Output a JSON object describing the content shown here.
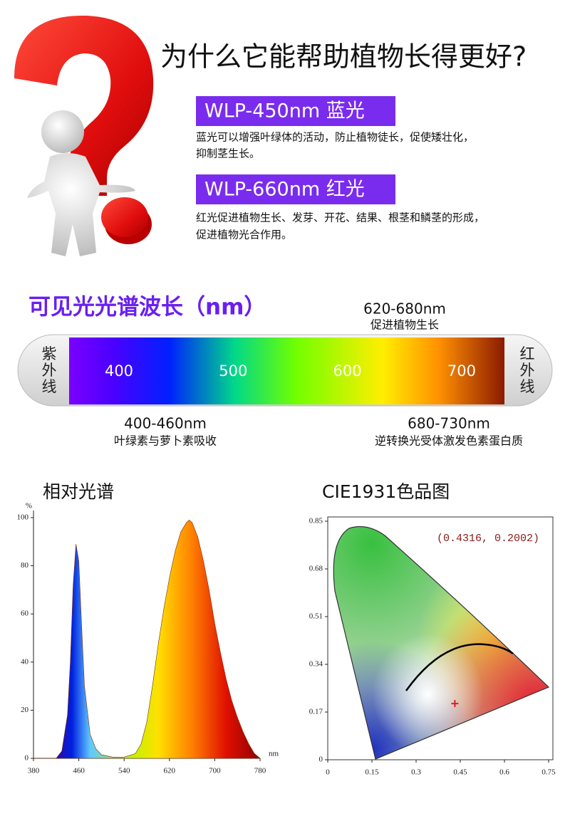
{
  "header": {
    "title": "为什么它能帮助植物长得更好?"
  },
  "items": [
    {
      "label": "WLP-450nm 蓝光",
      "lines": [
        "蓝光可以增强叶绿体的活动，防止植物徒长，促使矮壮化，",
        "抑制茎生长。"
      ]
    },
    {
      "label": "WLP-660nm 红光",
      "lines": [
        "红光促进植物生长、发芽、开花、结果、根茎和鳞茎的形成，",
        "促进植物光合作用。"
      ]
    }
  ],
  "spectrum_bar": {
    "title": "可见光光谱波长（nm）",
    "left": "紫外线",
    "right": "红外线",
    "ticks": [
      400,
      500,
      600,
      700
    ],
    "notes": [
      {
        "range": "620-680nm",
        "text": "促进植物生长"
      },
      {
        "range": "400-460nm",
        "text": "叶绿素与萝卜素吸收"
      },
      {
        "range": "680-730nm",
        "text": "逆转换光受体激发色素蛋白质"
      }
    ]
  },
  "chart_data": [
    {
      "type": "area",
      "title": "相对光谱",
      "x": [
        380,
        400,
        420,
        430,
        440,
        445,
        450,
        455,
        460,
        465,
        470,
        480,
        490,
        500,
        520,
        540,
        560,
        570,
        580,
        590,
        600,
        610,
        620,
        630,
        640,
        650,
        655,
        660,
        670,
        680,
        690,
        700,
        710,
        720,
        730,
        740,
        750,
        760,
        770,
        780
      ],
      "values": [
        0,
        0,
        0,
        3,
        18,
        40,
        72,
        89,
        82,
        55,
        30,
        10,
        4,
        1.5,
        0.5,
        0.5,
        2,
        6,
        15,
        30,
        47,
        62,
        75,
        86,
        94,
        98,
        99,
        98,
        92,
        82,
        70,
        56,
        44,
        33,
        24,
        17,
        11,
        6,
        2,
        0
      ],
      "xlim": [
        380,
        780
      ],
      "ylim": [
        0,
        100
      ],
      "xticks": [
        380,
        460,
        540,
        620,
        700,
        780
      ],
      "yticks": [
        0,
        20,
        40,
        60,
        80,
        100
      ],
      "x_unit": "nm",
      "y_unit": "%"
    },
    {
      "type": "scatter",
      "title": "CIE1931色品图",
      "x": [
        0.4316
      ],
      "values": [
        0.2002
      ],
      "color": "#d42020",
      "annotation": "(0.4316,  0.2002)",
      "xlim": [
        0,
        0.75
      ],
      "ylim": [
        0,
        0.85
      ],
      "xticks": [
        0,
        0.15,
        0.3,
        0.45,
        0.6,
        0.75
      ],
      "yticks": [
        0,
        0.17,
        0.34,
        0.51,
        0.68,
        0.85
      ]
    }
  ]
}
